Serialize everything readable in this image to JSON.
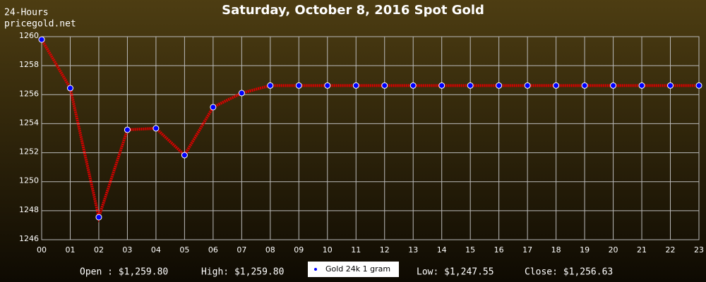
{
  "chart_data": {
    "type": "line",
    "title": "Saturday, October 8, 2016 Spot Gold",
    "annotations": [
      "24-Hours",
      "pricegold.net"
    ],
    "categories": [
      "00",
      "01",
      "02",
      "03",
      "04",
      "05",
      "06",
      "07",
      "08",
      "09",
      "10",
      "11",
      "12",
      "13",
      "14",
      "15",
      "16",
      "17",
      "18",
      "19",
      "20",
      "21",
      "22",
      "23"
    ],
    "series": [
      {
        "name": "Gold 24k 1 gram",
        "color": "#dd0000",
        "marker_color": "#0000ff",
        "values": [
          1259.8,
          1256.45,
          1247.55,
          1253.58,
          1253.68,
          1251.83,
          1255.14,
          1256.11,
          1256.63,
          1256.63,
          1256.63,
          1256.63,
          1256.63,
          1256.63,
          1256.63,
          1256.63,
          1256.63,
          1256.63,
          1256.63,
          1256.63,
          1256.63,
          1256.63,
          1256.63,
          1256.63
        ]
      }
    ],
    "ylim": [
      1246,
      1260
    ],
    "yticks": [
      1246,
      1248,
      1250,
      1252,
      1254,
      1256,
      1258,
      1260
    ],
    "grid": true,
    "stats": [
      "Open : $1,259.80",
      "High: $1,259.80",
      "Low: $1,247.55",
      "Close: $1,256.63"
    ]
  }
}
